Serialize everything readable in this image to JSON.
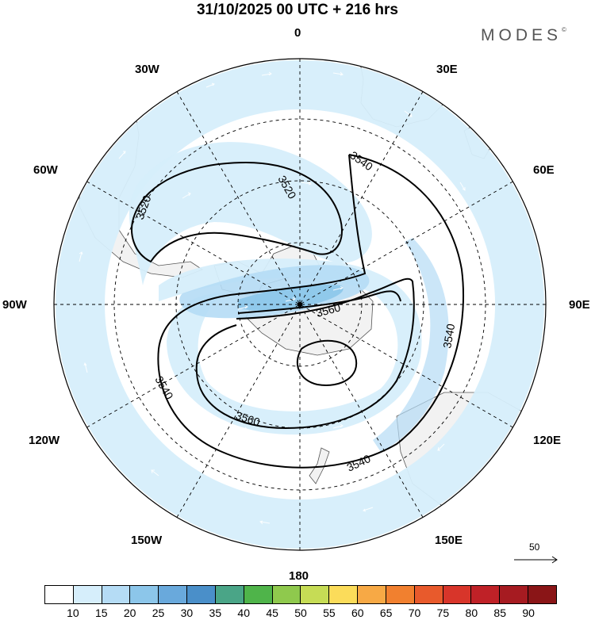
{
  "title": "31/10/2025  00 UTC  + 216 hrs",
  "brand": "MODES",
  "brand_mark": "©",
  "lon_labels": {
    "n0": "0",
    "n30e": "30E",
    "n60e": "60E",
    "n90e": "90E",
    "n120e": "120E",
    "n150e": "150E",
    "n180": "180",
    "n150w": "150W",
    "n120w": "120W",
    "n90w": "90W",
    "n60w": "60W",
    "n30w": "30W"
  },
  "contour_labels": [
    "3520",
    "3520",
    "3540",
    "3540",
    "3540",
    "3540",
    "3560",
    "3560"
  ],
  "vector_reference": "50",
  "colorbar": {
    "ticks": [
      "10",
      "15",
      "20",
      "25",
      "30",
      "35",
      "40",
      "45",
      "50",
      "55",
      "60",
      "65",
      "70",
      "75",
      "80",
      "85",
      "90"
    ],
    "colors": [
      "#ffffff",
      "#d6eefb",
      "#b5dcf5",
      "#8cc6ea",
      "#69a9dc",
      "#4a8fc9",
      "#4aa587",
      "#4fb44a",
      "#8fc94d",
      "#c6dc55",
      "#fbdc5a",
      "#f7a945",
      "#f1802f",
      "#e85a2c",
      "#d8352a",
      "#bf2127",
      "#a61b21",
      "#8a1517"
    ]
  },
  "icons": {
    "pole_marker": "dot-icon",
    "vector_arrow": "arrow-right-icon"
  }
}
